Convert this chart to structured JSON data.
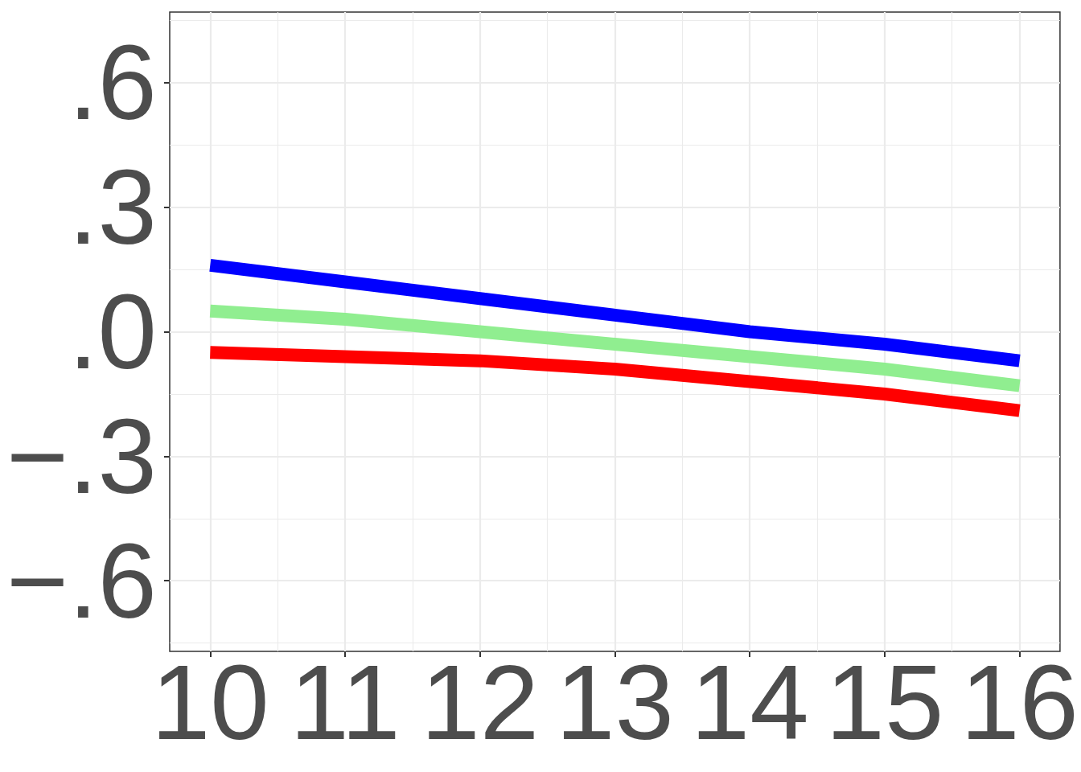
{
  "chart_data": {
    "type": "line",
    "x": [
      10,
      11,
      12,
      13,
      14,
      15,
      16
    ],
    "series": [
      {
        "color": "#0000ff",
        "values": [
          0.16,
          0.12,
          0.08,
          0.04,
          0.0,
          -0.03,
          -0.07
        ]
      },
      {
        "color": "#90ee90",
        "values": [
          0.05,
          0.03,
          0.0,
          -0.03,
          -0.06,
          -0.09,
          -0.13
        ]
      },
      {
        "color": "#ff0000",
        "values": [
          -0.05,
          -0.06,
          -0.07,
          -0.09,
          -0.12,
          -0.15,
          -0.19
        ]
      }
    ],
    "xlim": [
      9.7,
      16.3
    ],
    "ylim": [
      -0.77,
      0.77
    ],
    "xticks": [
      10,
      11,
      12,
      13,
      14,
      15,
      16
    ],
    "yticks": [
      {
        "value": -0.6,
        "label": "−.6"
      },
      {
        "value": -0.3,
        "label": "−.3"
      },
      {
        "value": 0,
        "label": ".0"
      },
      {
        "value": 0.3,
        "label": ".3"
      },
      {
        "value": 0.6,
        "label": ".6"
      }
    ],
    "grid": true,
    "marker": "none",
    "line_style": "solid"
  }
}
